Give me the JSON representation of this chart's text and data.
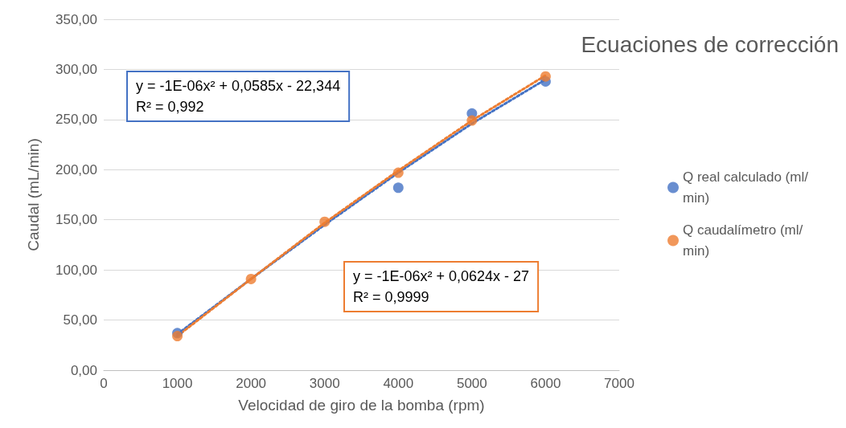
{
  "chart_data": {
    "type": "scatter",
    "title": "Ecuaciones de corrección",
    "xlabel": "Velocidad de giro de la bomba (rpm)",
    "ylabel": "Caudal (mL/min)",
    "x": [
      1000,
      2000,
      3000,
      4000,
      5000,
      6000
    ],
    "series": [
      {
        "name": "Q real calculado (ml/min)",
        "color": "#4472c4",
        "values": [
          37,
          null,
          null,
          182,
          256,
          288
        ],
        "marker": "circle"
      },
      {
        "name": "Q caudalímetro (ml/min)",
        "color": "#ed7d31",
        "values": [
          34,
          91,
          148,
          197,
          249,
          293
        ],
        "marker": "circle"
      },
      {
        "type": "line",
        "color": "#4472c4",
        "x": [
          1000,
          2000,
          3000,
          4000,
          5000,
          6000
        ],
        "values": [
          36,
          91,
          145,
          197,
          246,
          290
        ],
        "marker": "none",
        "line_style": "dotted"
      },
      {
        "type": "line",
        "color": "#ed7d31",
        "x": [
          1000,
          2000,
          3000,
          4000,
          5000,
          6000
        ],
        "values": [
          34,
          91,
          147,
          199,
          249,
          294
        ],
        "marker": "none",
        "line_style": "dotted"
      }
    ],
    "annotations": [
      "y = -1E-06x² + 0,0585x - 22,344\nR² = 0,992",
      "y = -1E-06x² + 0,0624x - 27\nR² = 0,9999"
    ],
    "xlim": [
      0,
      7000
    ],
    "xticks": [
      0,
      1000,
      2000,
      3000,
      4000,
      5000,
      6000,
      7000
    ],
    "ylim": [
      0,
      350
    ],
    "yticks": [
      {
        "value": 0,
        "label": "0,00"
      },
      {
        "value": 50,
        "label": "50,00"
      },
      {
        "value": 100,
        "label": "100,00"
      },
      {
        "value": 150,
        "label": "150,00"
      },
      {
        "value": 200,
        "label": "200,00"
      },
      {
        "value": 250,
        "label": "250,00"
      },
      {
        "value": 300,
        "label": "300,00"
      },
      {
        "value": 350,
        "label": "350,00"
      }
    ],
    "grid": "y",
    "legend": "right"
  }
}
